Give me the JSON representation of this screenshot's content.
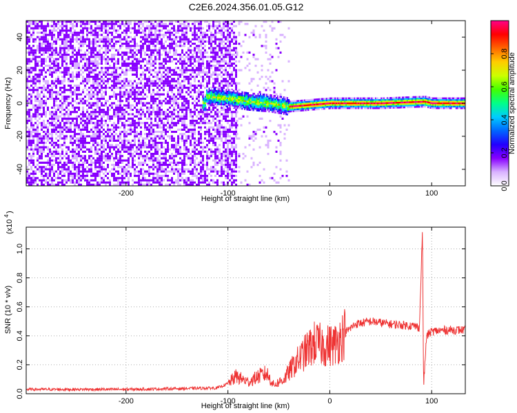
{
  "chart_data": [
    {
      "type": "heatmap",
      "title": "C2E6.2024.356.01.05.G12",
      "xlabel": "Height of straight line (km)",
      "ylabel": "Frequency (Hz)",
      "xlim": [
        -298,
        133
      ],
      "ylim": [
        -50,
        50
      ],
      "xticks": [
        -200,
        -100,
        0,
        100
      ],
      "yticks": [
        -40,
        -20,
        0,
        20,
        40
      ],
      "colorbar": {
        "label": "Normalized spectral amplitude",
        "range": [
          0,
          1
        ],
        "ticks": [
          0.0,
          0.2,
          0.4,
          0.6,
          0.8
        ],
        "colormap": [
          "#ffffff",
          "#d9b3ff",
          "#8800ff",
          "#2200ff",
          "#0066ff",
          "#00ccff",
          "#00ff88",
          "#44ff00",
          "#ccff00",
          "#ffcc00",
          "#ff6600",
          "#ff0000",
          "#ff0088"
        ]
      },
      "regions": [
        {
          "x_range": [
            -298,
            -92
          ],
          "description": "broadband noise, amplitude 0.05-0.3"
        },
        {
          "x_range": [
            -92,
            -40
          ],
          "description": "sparse noise with central band"
        },
        {
          "x_range": [
            -40,
            133
          ],
          "description": "narrow band near 0 Hz, amplitude up to 1.0"
        }
      ],
      "band_center_hz": [
        {
          "x": -122,
          "y": 4
        },
        {
          "x": -100,
          "y": 3
        },
        {
          "x": -80,
          "y": 1
        },
        {
          "x": -60,
          "y": 0
        },
        {
          "x": -40,
          "y": -2
        },
        {
          "x": -20,
          "y": -1
        },
        {
          "x": 0,
          "y": 0
        },
        {
          "x": 50,
          "y": 0
        },
        {
          "x": 93,
          "y": 1
        },
        {
          "x": 100,
          "y": 0
        },
        {
          "x": 133,
          "y": 0
        }
      ]
    },
    {
      "type": "line",
      "xlabel": "Height of straight line (km)",
      "ylabel": "SNR (10 * v/v)",
      "scale_label": "(x10",
      "scale_exponent": "4",
      "xlim": [
        -298,
        133
      ],
      "ylim": [
        0,
        1.15
      ],
      "xticks": [
        -200,
        -100,
        0,
        100
      ],
      "yticks": [
        0.0,
        0.2,
        0.4,
        0.6,
        0.8,
        1.0
      ],
      "series": [
        {
          "color": "#ee3333",
          "points": [
            {
              "x": -298,
              "y": 0.03
            },
            {
              "x": -250,
              "y": 0.03
            },
            {
              "x": -200,
              "y": 0.03
            },
            {
              "x": -150,
              "y": 0.035
            },
            {
              "x": -110,
              "y": 0.04
            },
            {
              "x": -100,
              "y": 0.07
            },
            {
              "x": -92,
              "y": 0.12
            },
            {
              "x": -80,
              "y": 0.08
            },
            {
              "x": -70,
              "y": 0.12
            },
            {
              "x": -62,
              "y": 0.14
            },
            {
              "x": -55,
              "y": 0.06
            },
            {
              "x": -45,
              "y": 0.1
            },
            {
              "x": -35,
              "y": 0.2
            },
            {
              "x": -25,
              "y": 0.28
            },
            {
              "x": -15,
              "y": 0.35
            },
            {
              "x": -5,
              "y": 0.33
            },
            {
              "x": 5,
              "y": 0.34
            },
            {
              "x": 15,
              "y": 0.42
            },
            {
              "x": 25,
              "y": 0.48
            },
            {
              "x": 40,
              "y": 0.5
            },
            {
              "x": 60,
              "y": 0.48
            },
            {
              "x": 80,
              "y": 0.47
            },
            {
              "x": 88,
              "y": 0.46
            },
            {
              "x": 91,
              "y": 1.15
            },
            {
              "x": 92,
              "y": 0.05
            },
            {
              "x": 95,
              "y": 0.4
            },
            {
              "x": 100,
              "y": 0.43
            },
            {
              "x": 115,
              "y": 0.44
            },
            {
              "x": 133,
              "y": 0.44
            }
          ]
        }
      ]
    }
  ]
}
